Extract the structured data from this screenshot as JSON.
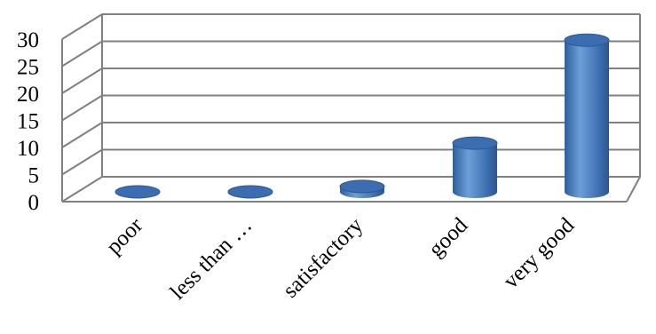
{
  "chart_data": {
    "type": "bar",
    "style": "3d-cylinder",
    "categories": [
      "poor",
      "less than …",
      "satisfactory",
      "good",
      "very good"
    ],
    "values": [
      0,
      0,
      1,
      9,
      28
    ],
    "ylim": [
      0,
      30
    ],
    "yticks": [
      "0",
      "5",
      "10",
      "15",
      "20",
      "25",
      "30"
    ],
    "grid": true,
    "legend": "none",
    "colors": {
      "bar_main": "#4a7ebb",
      "bar_light": "#6fa0d8",
      "bar_dark": "#2c5a92",
      "bar_top": "#3b6db0",
      "grid": "#808080"
    }
  }
}
